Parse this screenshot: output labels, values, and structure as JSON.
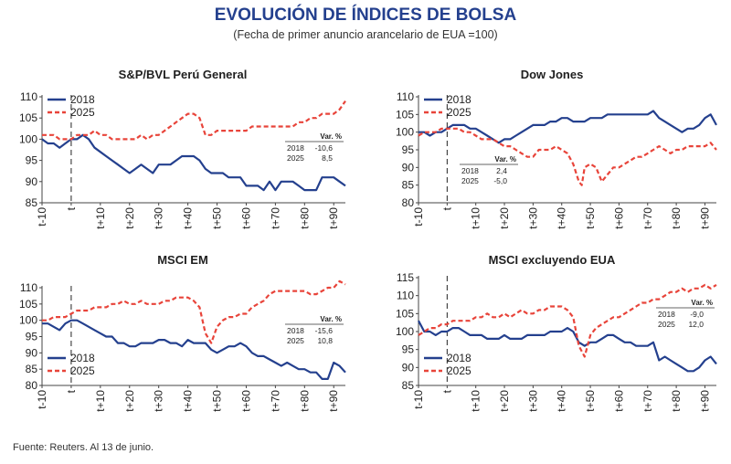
{
  "title": "EVOLUCIÓN DE ÍNDICES DE BOLSA",
  "subtitle": "(Fecha de primer anuncio arancelario de EUA =100)",
  "source": "Fuente: Reuters. Al 13 de junio.",
  "colors": {
    "s2018": "#24408e",
    "s2025": "#e8443a",
    "text": "#1f1f1f"
  },
  "var_header": "Var. %",
  "chart_data": [
    {
      "type": "line",
      "title": "S&P/BVL Perú General",
      "x_ticks": [
        "t-10",
        "t",
        "t+10",
        "t+20",
        "t+30",
        "t+40",
        "t+50",
        "t+60",
        "t+70",
        "t+80",
        "t+90"
      ],
      "xlim": [
        -10,
        94
      ],
      "ylim": [
        85,
        110
      ],
      "y_ticks": [
        85,
        90,
        95,
        100,
        105,
        110
      ],
      "event_line_x": 0,
      "legend": "top-left",
      "var_table": [
        [
          "2018",
          "-10,6"
        ],
        [
          "2025",
          "8,5"
        ]
      ],
      "series": [
        {
          "name": "2018",
          "style": "solid",
          "x": [
            -10,
            -8,
            -6,
            -4,
            -2,
            0,
            2,
            4,
            6,
            8,
            10,
            12,
            14,
            16,
            18,
            20,
            22,
            24,
            26,
            28,
            30,
            32,
            34,
            36,
            38,
            40,
            42,
            44,
            46,
            48,
            50,
            52,
            54,
            56,
            58,
            60,
            62,
            64,
            66,
            68,
            70,
            72,
            74,
            76,
            78,
            80,
            82,
            84,
            86,
            88,
            90,
            92,
            94
          ],
          "y": [
            100,
            99,
            99,
            98,
            99,
            100,
            100,
            101,
            100,
            98,
            97,
            96,
            95,
            94,
            93,
            92,
            93,
            94,
            93,
            92,
            94,
            94,
            94,
            95,
            96,
            96,
            96,
            95,
            93,
            92,
            92,
            92,
            91,
            91,
            91,
            89,
            89,
            89,
            88,
            90,
            88,
            90,
            90,
            90,
            89,
            88,
            88,
            88,
            91,
            91,
            91,
            90,
            89
          ]
        },
        {
          "name": "2025",
          "style": "dashed",
          "x": [
            -10,
            -8,
            -6,
            -4,
            -2,
            0,
            2,
            4,
            6,
            8,
            10,
            12,
            14,
            16,
            18,
            20,
            22,
            24,
            26,
            28,
            30,
            32,
            34,
            36,
            38,
            40,
            42,
            44,
            46,
            48,
            50,
            52,
            54,
            56,
            58,
            60,
            62,
            64,
            66,
            68,
            70,
            72,
            74,
            76,
            78,
            80,
            82,
            84,
            86,
            88,
            90,
            92,
            94
          ],
          "y": [
            101,
            101,
            101,
            100,
            100,
            100,
            101,
            101,
            101,
            102,
            101,
            101,
            100,
            100,
            100,
            100,
            100,
            101,
            100,
            101,
            101,
            102,
            103,
            104,
            105,
            106,
            106,
            105,
            101,
            101,
            102,
            102,
            102,
            102,
            102,
            102,
            103,
            103,
            103,
            103,
            103,
            103,
            103,
            103,
            104,
            104,
            105,
            105,
            106,
            106,
            106,
            107,
            109
          ]
        }
      ]
    },
    {
      "type": "line",
      "title": "Dow Jones",
      "x_ticks": [
        "t-10",
        "t",
        "t+10",
        "t+20",
        "t+30",
        "t+40",
        "t+50",
        "t+60",
        "t+70",
        "t+80",
        "t+90"
      ],
      "xlim": [
        -10,
        94
      ],
      "ylim": [
        80,
        110
      ],
      "y_ticks": [
        80,
        85,
        90,
        95,
        100,
        105,
        110
      ],
      "event_line_x": 0,
      "legend": "top-left",
      "var_table": [
        [
          "2018",
          "2,4"
        ],
        [
          "2025",
          "-5,0"
        ]
      ],
      "series": [
        {
          "name": "2018",
          "style": "solid",
          "x": [
            -10,
            -8,
            -6,
            -4,
            -2,
            0,
            2,
            4,
            6,
            8,
            10,
            12,
            14,
            16,
            18,
            20,
            22,
            24,
            26,
            28,
            30,
            32,
            34,
            36,
            38,
            40,
            42,
            44,
            46,
            48,
            50,
            52,
            54,
            56,
            58,
            60,
            62,
            64,
            66,
            68,
            70,
            72,
            74,
            76,
            78,
            80,
            82,
            84,
            86,
            88,
            90,
            92,
            94
          ],
          "y": [
            100,
            100,
            99,
            100,
            100,
            101,
            102,
            102,
            102,
            101,
            101,
            100,
            99,
            98,
            97,
            98,
            98,
            99,
            100,
            101,
            102,
            102,
            102,
            103,
            103,
            104,
            104,
            103,
            103,
            103,
            104,
            104,
            104,
            105,
            105,
            105,
            105,
            105,
            105,
            105,
            105,
            106,
            104,
            103,
            102,
            101,
            100,
            101,
            101,
            102,
            104,
            105,
            102
          ]
        },
        {
          "name": "2025",
          "style": "dashed",
          "x": [
            -10,
            -8,
            -6,
            -4,
            -2,
            0,
            2,
            4,
            6,
            8,
            10,
            12,
            14,
            16,
            18,
            20,
            22,
            24,
            26,
            28,
            30,
            32,
            34,
            36,
            38,
            40,
            42,
            44,
            46,
            47,
            48,
            50,
            52,
            54,
            56,
            58,
            60,
            62,
            64,
            66,
            68,
            70,
            72,
            74,
            76,
            78,
            80,
            82,
            84,
            86,
            88,
            90,
            92,
            94
          ],
          "y": [
            99,
            100,
            100,
            100,
            101,
            101,
            101,
            101,
            100,
            100,
            99,
            98,
            98,
            98,
            97,
            96,
            96,
            95,
            94,
            93,
            93,
            95,
            95,
            95,
            96,
            95,
            94,
            91,
            86,
            85,
            90,
            91,
            90,
            86,
            88,
            90,
            90,
            91,
            92,
            93,
            93,
            94,
            95,
            96,
            95,
            94,
            95,
            95,
            96,
            96,
            96,
            96,
            97,
            95
          ]
        }
      ]
    },
    {
      "type": "line",
      "title": "MSCI EM",
      "x_ticks": [
        "t-10",
        "t",
        "t+10",
        "t+20",
        "t+30",
        "t+40",
        "t+50",
        "t+60",
        "t+70",
        "t+80",
        "t+90"
      ],
      "xlim": [
        -10,
        94
      ],
      "ylim": [
        80,
        110
      ],
      "y_ticks": [
        80,
        85,
        90,
        95,
        100,
        105,
        110
      ],
      "event_line_x": 0,
      "legend": "bottom-left",
      "var_table": [
        [
          "2018",
          "-15,6"
        ],
        [
          "2025",
          "10,8"
        ]
      ],
      "series": [
        {
          "name": "2018",
          "style": "solid",
          "x": [
            -10,
            -8,
            -6,
            -4,
            -2,
            0,
            2,
            4,
            6,
            8,
            10,
            12,
            14,
            16,
            18,
            20,
            22,
            24,
            26,
            28,
            30,
            32,
            34,
            36,
            38,
            40,
            42,
            44,
            46,
            48,
            50,
            52,
            54,
            56,
            58,
            60,
            62,
            64,
            66,
            68,
            70,
            72,
            74,
            76,
            78,
            80,
            82,
            84,
            86,
            88,
            90,
            92,
            94
          ],
          "y": [
            99,
            99,
            98,
            97,
            99,
            100,
            100,
            99,
            98,
            97,
            96,
            95,
            95,
            93,
            93,
            92,
            92,
            93,
            93,
            93,
            94,
            94,
            93,
            93,
            92,
            94,
            93,
            93,
            93,
            91,
            90,
            91,
            92,
            92,
            93,
            92,
            90,
            89,
            89,
            88,
            87,
            86,
            87,
            86,
            85,
            85,
            84,
            84,
            82,
            82,
            87,
            86,
            84
          ]
        },
        {
          "name": "2025",
          "style": "dashed",
          "x": [
            -10,
            -8,
            -6,
            -4,
            -2,
            0,
            2,
            4,
            6,
            8,
            10,
            12,
            14,
            16,
            18,
            20,
            22,
            24,
            26,
            28,
            30,
            32,
            34,
            36,
            38,
            40,
            42,
            44,
            46,
            48,
            50,
            52,
            54,
            56,
            58,
            60,
            62,
            64,
            66,
            68,
            70,
            72,
            74,
            76,
            78,
            80,
            82,
            84,
            86,
            88,
            90,
            92,
            94
          ],
          "y": [
            100,
            100,
            101,
            101,
            101,
            102,
            103,
            103,
            103,
            104,
            104,
            104,
            105,
            105,
            106,
            105,
            105,
            106,
            105,
            105,
            105,
            106,
            106,
            107,
            107,
            107,
            106,
            104,
            96,
            93,
            98,
            100,
            101,
            101,
            102,
            102,
            104,
            105,
            106,
            108,
            109,
            109,
            109,
            109,
            109,
            109,
            108,
            108,
            109,
            110,
            110,
            112,
            111
          ]
        }
      ]
    },
    {
      "type": "line",
      "title": "MSCI excluyendo EUA",
      "x_ticks": [
        "t-10",
        "t",
        "t+10",
        "t+20",
        "t+30",
        "t+40",
        "t+50",
        "t+60",
        "t+70",
        "t+80",
        "t+90"
      ],
      "xlim": [
        -10,
        94
      ],
      "ylim": [
        85,
        115
      ],
      "y_ticks": [
        85,
        90,
        95,
        100,
        105,
        110,
        115
      ],
      "event_line_x": 0,
      "legend": "bottom-left",
      "var_table": [
        [
          "2018",
          "-9,0"
        ],
        [
          "2025",
          "12,0"
        ]
      ],
      "series": [
        {
          "name": "2018",
          "style": "solid",
          "x": [
            -10,
            -8,
            -6,
            -4,
            -2,
            0,
            2,
            4,
            6,
            8,
            10,
            12,
            14,
            16,
            18,
            20,
            22,
            24,
            26,
            28,
            30,
            32,
            34,
            36,
            38,
            40,
            42,
            44,
            46,
            48,
            50,
            52,
            54,
            56,
            58,
            60,
            62,
            64,
            66,
            68,
            70,
            72,
            74,
            76,
            78,
            80,
            82,
            84,
            86,
            88,
            90,
            92,
            94
          ],
          "y": [
            103,
            100,
            100,
            99,
            100,
            100,
            101,
            101,
            100,
            99,
            99,
            99,
            98,
            98,
            98,
            99,
            98,
            98,
            98,
            99,
            99,
            99,
            99,
            100,
            100,
            100,
            101,
            100,
            97,
            96,
            97,
            97,
            98,
            99,
            99,
            98,
            97,
            97,
            96,
            96,
            96,
            97,
            92,
            93,
            92,
            91,
            90,
            89,
            89,
            90,
            92,
            93,
            91
          ]
        },
        {
          "name": "2025",
          "style": "dashed",
          "x": [
            -10,
            -8,
            -6,
            -4,
            -2,
            0,
            2,
            4,
            6,
            8,
            10,
            12,
            14,
            16,
            18,
            20,
            22,
            24,
            26,
            28,
            30,
            32,
            34,
            36,
            38,
            40,
            42,
            44,
            46,
            48,
            50,
            52,
            54,
            56,
            58,
            60,
            62,
            64,
            66,
            68,
            70,
            72,
            74,
            76,
            78,
            80,
            82,
            84,
            86,
            88,
            90,
            92,
            94
          ],
          "y": [
            99,
            100,
            101,
            101,
            102,
            102,
            103,
            103,
            103,
            103,
            104,
            104,
            105,
            104,
            104,
            105,
            104,
            105,
            106,
            105,
            105,
            106,
            106,
            107,
            107,
            107,
            106,
            104,
            96,
            93,
            99,
            101,
            102,
            103,
            104,
            104,
            105,
            106,
            107,
            108,
            108,
            109,
            109,
            110,
            111,
            111,
            112,
            111,
            112,
            112,
            113,
            112,
            113
          ]
        }
      ]
    }
  ]
}
